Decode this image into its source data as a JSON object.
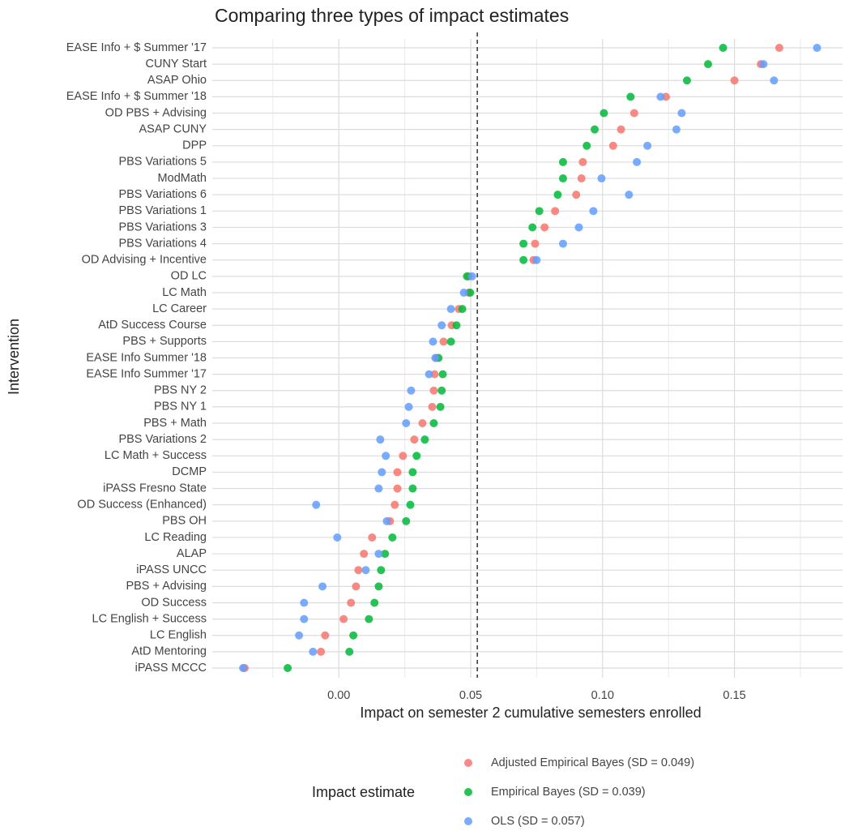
{
  "chart_data": {
    "type": "dot",
    "title": "Comparing three types of impact estimates",
    "x_label": "Impact on semester 2 cumulative semesters enrolled",
    "y_label": "Intervention",
    "legend_title": "Impact estimate",
    "legend_position": "bottom",
    "grid": true,
    "xlim": [
      -0.048,
      0.191
    ],
    "xticks": [
      {
        "value": 0,
        "label": "0.00"
      },
      0.05,
      {
        "value": 0.1,
        "label": "0.10"
      },
      0.15
    ],
    "x_minor_ticks": [
      -0.025,
      0.025,
      0.075,
      0.125,
      0.175
    ],
    "reference_line": 0.0525,
    "categories": [
      "EASE Info + $ Summer '17",
      "CUNY Start",
      "ASAP Ohio",
      "EASE Info + $ Summer '18",
      "OD PBS + Advising",
      "ASAP CUNY",
      "DPP",
      "PBS Variations 5",
      "ModMath",
      "PBS Variations 6",
      "PBS Variations 1",
      "PBS Variations 3",
      "PBS Variations 4",
      "OD Advising + Incentive",
      "OD LC",
      "LC Math",
      "LC Career",
      "AtD Success Course",
      "PBS + Supports",
      "EASE Info Summer '18",
      "EASE Info Summer '17",
      "PBS NY 2",
      "PBS NY 1",
      "PBS + Math",
      "PBS Variations 2",
      "LC Math + Success",
      "DCMP",
      "iPASS Fresno State",
      "OD Success (Enhanced)",
      "PBS OH",
      "LC Reading",
      "ALAP",
      "iPASS UNCC",
      "PBS + Advising",
      "OD Success",
      "LC English + Success",
      "LC English",
      "AtD Mentoring",
      "iPASS MCCC"
    ],
    "series": [
      {
        "name": "Adjusted Empirical Bayes (SD = 0.049)",
        "color": "#F8766D",
        "values": [
          0.167,
          0.16,
          0.15,
          0.124,
          0.112,
          0.107,
          0.104,
          0.0925,
          0.092,
          0.09,
          0.082,
          0.078,
          0.0744,
          0.0738,
          0.0492,
          0.0492,
          0.0455,
          0.0428,
          0.0397,
          0.0369,
          0.0363,
          0.036,
          0.0354,
          0.0317,
          0.0286,
          0.0243,
          0.0222,
          0.0222,
          0.0212,
          0.0194,
          0.0126,
          0.0095,
          0.0074,
          0.0065,
          0.0046,
          0.0018,
          -0.0052,
          -0.0068,
          -0.0357
        ]
      },
      {
        "name": "Empirical Bayes (SD = 0.039)",
        "color": "#00BA38",
        "values": [
          0.1457,
          0.14,
          0.132,
          0.1106,
          0.1005,
          0.097,
          0.094,
          0.085,
          0.085,
          0.083,
          0.076,
          0.0734,
          0.07,
          0.07,
          0.0486,
          0.0498,
          0.0468,
          0.0446,
          0.0425,
          0.0378,
          0.0394,
          0.039,
          0.0385,
          0.036,
          0.0326,
          0.0295,
          0.028,
          0.028,
          0.0271,
          0.0255,
          0.0203,
          0.0175,
          0.016,
          0.0151,
          0.0135,
          0.0114,
          0.0055,
          0.004,
          -0.0194
        ]
      },
      {
        "name": "OLS (SD = 0.057)",
        "color": "#619CFF",
        "values": [
          0.1813,
          0.161,
          0.165,
          0.122,
          0.13,
          0.128,
          0.117,
          0.113,
          0.0996,
          0.11,
          0.0965,
          0.091,
          0.085,
          0.075,
          0.0505,
          0.0474,
          0.0425,
          0.039,
          0.0357,
          0.0366,
          0.0342,
          0.0274,
          0.0265,
          0.0255,
          0.0157,
          0.0178,
          0.0163,
          0.0151,
          -0.0086,
          0.0182,
          -0.0006,
          0.0151,
          0.0102,
          -0.0062,
          -0.0132,
          -0.0132,
          -0.0151,
          -0.0098,
          -0.0363
        ]
      }
    ]
  }
}
